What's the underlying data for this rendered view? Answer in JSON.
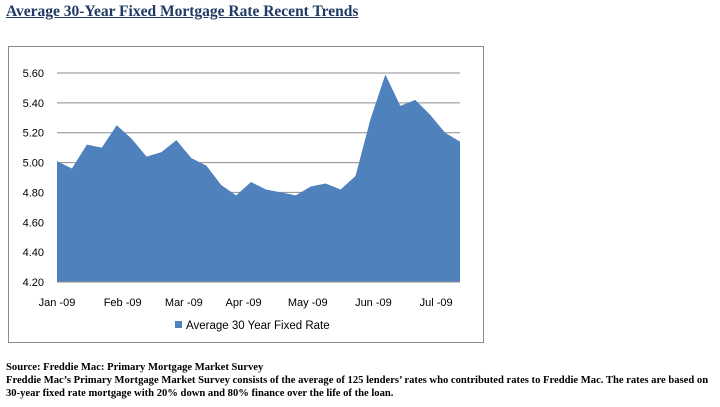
{
  "page": {
    "title": "Average 30-Year Fixed Mortgage Rate Recent Trends",
    "source": "Source: Freddie Mac: Primary Mortgage Market Survey",
    "description_line1": "Freddie Mac’s Primary Mortgage Market Survey consists of the average of 125 lenders’ rates who contributed rates to Freddie Mac. The rates are based on",
    "description_line2": "30-year fixed rate mortgage with 20% down and 80% finance over the life of the loan."
  },
  "chart_data": {
    "type": "area",
    "title": "",
    "xlabel": "",
    "ylabel": "",
    "ylim": [
      4.2,
      5.6
    ],
    "yticks": [
      "5.60",
      "5.40",
      "5.20",
      "5.00",
      "4.80",
      "4.60",
      "4.40",
      "4.20"
    ],
    "xticks": [
      "Jan -09",
      "Feb -09",
      "Mar -09",
      "Apr -09",
      "May -09",
      "Jun -09",
      "Jul -09"
    ],
    "grid": true,
    "legend_position": "bottom",
    "colors": {
      "fill": "#4f81bd",
      "grid": "#8c8c8c"
    },
    "series": [
      {
        "name": "Average 30 Year Fixed Rate",
        "values": [
          5.01,
          4.96,
          5.12,
          5.1,
          5.25,
          5.16,
          5.04,
          5.07,
          5.15,
          5.03,
          4.98,
          4.85,
          4.78,
          4.87,
          4.82,
          4.8,
          4.78,
          4.84,
          4.86,
          4.82,
          4.91,
          5.29,
          5.59,
          5.38,
          5.42,
          5.32,
          5.2,
          5.14
        ]
      }
    ]
  }
}
